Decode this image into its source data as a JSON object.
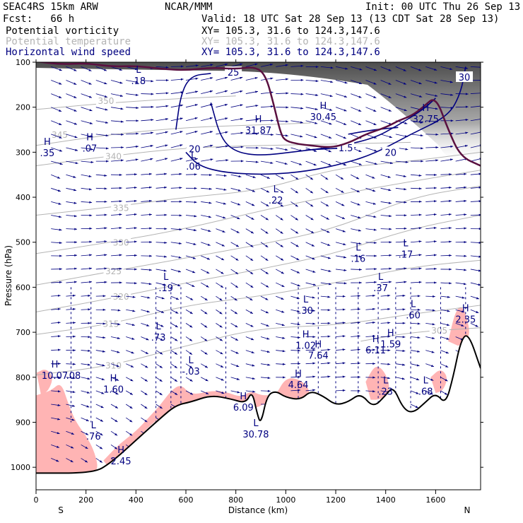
{
  "header": {
    "title_left": "SEAC4RS 15km ARW",
    "source": "NCAR/MMM",
    "init": "Init: 00 UTC Thu 26 Sep 13",
    "fcst": "Fcst:   66 h",
    "valid": "Valid: 18 UTC Sat 28 Sep 13 (13 CDT Sat 28 Sep 13)",
    "fields": [
      {
        "name": "Potential vorticity",
        "xy": "XY= 105.3, 31.6 to 124.3,147.6",
        "color": "#000000"
      },
      {
        "name": "Potential temperature",
        "xy": "XY= 105.3, 31.6 to 124.3,147.6",
        "color": "#b4b4b4"
      },
      {
        "name": "Horizontal wind speed",
        "xy": "XY= 105.3, 31.6 to 124.3,147.6",
        "color": "#000080"
      }
    ]
  },
  "chart_data": {
    "type": "cross-section",
    "xlabel": "Distance (km)",
    "ylabel": "Pressure (hPa)",
    "xlim": [
      0,
      1780
    ],
    "ylim": [
      1050,
      100
    ],
    "x_ticks": [
      "0",
      "200",
      "400",
      "600",
      "800",
      "1000",
      "1200",
      "1400",
      "1600"
    ],
    "y_ticks": [
      "100",
      "200",
      "300",
      "400",
      "500",
      "600",
      "700",
      "800",
      "900",
      "1000"
    ],
    "x_end_labels": {
      "left": "S",
      "right": "N"
    },
    "colors": {
      "theta": "#b4b4b4",
      "wind": "#000080",
      "pv": "#5a1040",
      "pv_shade": "#ffb4b4",
      "terrain": "#000000",
      "vectors": "#000080"
    },
    "terrain": [
      {
        "x": 0,
        "p": 1013
      },
      {
        "x": 230,
        "p": 1013
      },
      {
        "x": 300,
        "p": 990
      },
      {
        "x": 400,
        "p": 940
      },
      {
        "x": 500,
        "p": 890
      },
      {
        "x": 560,
        "p": 862
      },
      {
        "x": 620,
        "p": 855
      },
      {
        "x": 700,
        "p": 840
      },
      {
        "x": 780,
        "p": 848
      },
      {
        "x": 840,
        "p": 858
      },
      {
        "x": 865,
        "p": 830
      },
      {
        "x": 885,
        "p": 880
      },
      {
        "x": 900,
        "p": 905
      },
      {
        "x": 925,
        "p": 840
      },
      {
        "x": 960,
        "p": 830
      },
      {
        "x": 1000,
        "p": 845
      },
      {
        "x": 1060,
        "p": 850
      },
      {
        "x": 1100,
        "p": 830
      },
      {
        "x": 1150,
        "p": 842
      },
      {
        "x": 1200,
        "p": 862
      },
      {
        "x": 1250,
        "p": 855
      },
      {
        "x": 1300,
        "p": 835
      },
      {
        "x": 1350,
        "p": 868
      },
      {
        "x": 1400,
        "p": 840
      },
      {
        "x": 1430,
        "p": 820
      },
      {
        "x": 1470,
        "p": 870
      },
      {
        "x": 1510,
        "p": 880
      },
      {
        "x": 1560,
        "p": 855
      },
      {
        "x": 1600,
        "p": 835
      },
      {
        "x": 1640,
        "p": 860
      },
      {
        "x": 1670,
        "p": 800
      },
      {
        "x": 1700,
        "p": 720
      },
      {
        "x": 1730,
        "p": 700
      },
      {
        "x": 1780,
        "p": 780
      }
    ],
    "theta": [
      {
        "label": "345",
        "lx": 95,
        "lp": 260,
        "pts": [
          [
            0,
            285
          ],
          [
            300,
            260
          ],
          [
            600,
            245
          ],
          [
            850,
            240
          ],
          [
            1100,
            235
          ]
        ]
      },
      {
        "label": "340",
        "lx": 310,
        "lp": 308,
        "pts": [
          [
            0,
            330
          ],
          [
            300,
            308
          ],
          [
            600,
            290
          ],
          [
            900,
            285
          ],
          [
            1200,
            282
          ],
          [
            1500,
            278
          ]
        ]
      },
      {
        "label": "335",
        "lx": 340,
        "lp": 423,
        "pts": [
          [
            0,
            440
          ],
          [
            300,
            422
          ],
          [
            600,
            400
          ],
          [
            900,
            385
          ],
          [
            1200,
            335
          ],
          [
            1500,
            320
          ],
          [
            1780,
            300
          ]
        ]
      },
      {
        "label": "330",
        "lx": 340,
        "lp": 500,
        "pts": [
          [
            0,
            525
          ],
          [
            300,
            500
          ],
          [
            600,
            470
          ],
          [
            900,
            430
          ],
          [
            1200,
            395
          ],
          [
            1500,
            365
          ],
          [
            1780,
            340
          ]
        ]
      },
      {
        "label": "325",
        "lx": 310,
        "lp": 563,
        "pts": [
          [
            0,
            595
          ],
          [
            300,
            565
          ],
          [
            600,
            535
          ],
          [
            900,
            505
          ],
          [
            1200,
            470
          ],
          [
            1500,
            400
          ],
          [
            1780,
            375
          ]
        ]
      },
      {
        "label": "320",
        "lx": 340,
        "lp": 620,
        "pts": [
          [
            0,
            655
          ],
          [
            300,
            625
          ],
          [
            600,
            590
          ],
          [
            900,
            560
          ],
          [
            1200,
            525
          ],
          [
            1500,
            470
          ],
          [
            1780,
            440
          ]
        ]
      },
      {
        "label": "315",
        "lx": 300,
        "lp": 680,
        "pts": [
          [
            0,
            705
          ],
          [
            300,
            682
          ],
          [
            600,
            640
          ],
          [
            900,
            620
          ],
          [
            1200,
            590
          ],
          [
            1500,
            555
          ],
          [
            1780,
            540
          ]
        ]
      },
      {
        "label": "310",
        "lx": 310,
        "lp": 773,
        "pts": [
          [
            0,
            795
          ],
          [
            300,
            775
          ],
          [
            600,
            730
          ],
          [
            900,
            690
          ],
          [
            1200,
            685
          ],
          [
            1500,
            660
          ],
          [
            1780,
            640
          ]
        ]
      },
      {
        "label": "305",
        "lx": 1615,
        "lp": 695,
        "pts": [
          [
            1300,
            720
          ],
          [
            1500,
            700
          ],
          [
            1780,
            690
          ]
        ]
      },
      {
        "label": "350",
        "lx": 280,
        "lp": 185,
        "pts": [
          [
            0,
            205
          ],
          [
            300,
            190
          ],
          [
            600,
            180
          ],
          [
            800,
            175
          ]
        ]
      }
    ],
    "wind_contours": [
      {
        "label": "20",
        "lx": 635,
        "lp": 292,
        "pts": [
          [
            560,
            250
          ],
          [
            580,
            170
          ],
          [
            620,
            130
          ],
          [
            700,
            125
          ]
        ]
      },
      {
        "label": "25",
        "lx": 790,
        "lp": 122,
        "pts": [
          [
            600,
            300
          ],
          [
            650,
            330
          ],
          [
            750,
            345
          ],
          [
            900,
            350
          ],
          [
            1050,
            345
          ],
          [
            1200,
            330
          ],
          [
            1350,
            305
          ],
          [
            1500,
            260
          ],
          [
            1650,
            220
          ],
          [
            1700,
            170
          ],
          [
            1720,
            110
          ]
        ]
      },
      {
        "label": "30",
        "lx": 1715,
        "lp": 133,
        "pts": [
          [
            700,
            190
          ],
          [
            740,
            270
          ],
          [
            800,
            300
          ],
          [
            900,
            308
          ],
          [
            1050,
            298
          ],
          [
            1200,
            288
          ],
          [
            1350,
            270
          ],
          [
            1450,
            240
          ],
          [
            1550,
            205
          ],
          [
            1600,
            180
          ]
        ]
      },
      {
        "label": "1.5",
        "lx": 1240,
        "lp": 290,
        "pts": [
          [
            1080,
            295
          ],
          [
            1180,
            292
          ],
          [
            1280,
            290
          ]
        ]
      },
      {
        "label": "20",
        "lx": 1420,
        "lp": 300,
        "pts": [
          [
            1250,
            260
          ],
          [
            1350,
            250
          ],
          [
            1450,
            245
          ]
        ]
      }
    ],
    "pv_2pvu": [
      [
        0,
        98
      ],
      [
        100,
        105
      ],
      [
        200,
        102
      ],
      [
        300,
        110
      ],
      [
        400,
        108
      ],
      [
        500,
        115
      ],
      [
        600,
        118
      ],
      [
        700,
        112
      ],
      [
        800,
        115
      ],
      [
        880,
        110
      ],
      [
        920,
        130
      ],
      [
        950,
        190
      ],
      [
        980,
        260
      ],
      [
        1000,
        275
      ],
      [
        1050,
        282
      ],
      [
        1100,
        285
      ],
      [
        1180,
        290
      ],
      [
        1250,
        280
      ],
      [
        1320,
        260
      ],
      [
        1400,
        245
      ],
      [
        1450,
        230
      ],
      [
        1500,
        220
      ],
      [
        1550,
        200
      ],
      [
        1600,
        175
      ],
      [
        1650,
        250
      ],
      [
        1700,
        310
      ],
      [
        1780,
        330
      ]
    ],
    "labels": [
      {
        "t": "H",
        "s": ".35",
        "x": 45,
        "p": 290
      },
      {
        "t": "H",
        "s": ".07",
        "x": 215,
        "p": 280
      },
      {
        "t": "H",
        "s": "31.87",
        "x": 890,
        "p": 240
      },
      {
        "t": "H",
        "s": "30.45",
        "x": 1150,
        "p": 210
      },
      {
        "t": "H",
        "s": "32.75",
        "x": 1560,
        "p": 215
      },
      {
        "t": "L",
        "s": ".18",
        "x": 410,
        "p": 130
      },
      {
        "t": "L",
        "s": ".06",
        "x": 630,
        "p": 320
      },
      {
        "t": "L",
        "s": ".22",
        "x": 960,
        "p": 395
      },
      {
        "t": "L",
        "s": ".16",
        "x": 1290,
        "p": 525
      },
      {
        "t": "L",
        "s": ".17",
        "x": 1480,
        "p": 515
      },
      {
        "t": "L",
        "s": ".19",
        "x": 520,
        "p": 590
      },
      {
        "t": "L",
        "s": ".37",
        "x": 1380,
        "p": 590
      },
      {
        "t": "L",
        "s": ".30",
        "x": 1080,
        "p": 640
      },
      {
        "t": "L",
        "s": ".60",
        "x": 1510,
        "p": 650
      },
      {
        "t": "L",
        "s": ".73",
        "x": 490,
        "p": 700
      },
      {
        "t": "H",
        "s": "1.02",
        "x": 1080,
        "p": 718
      },
      {
        "t": "H",
        "s": "7.64",
        "x": 1130,
        "p": 740
      },
      {
        "t": "H",
        "s": "6.11",
        "x": 1360,
        "p": 728
      },
      {
        "t": "H",
        "s": "1.59",
        "x": 1420,
        "p": 715
      },
      {
        "t": "H",
        "s": "2.35",
        "x": 1720,
        "p": 660
      },
      {
        "t": "H",
        "s": "10.07",
        "x": 75,
        "p": 785
      },
      {
        "t": "",
        "s": ".08",
        "x": 150,
        "p": 785
      },
      {
        "t": "H",
        "s": "1.60",
        "x": 310,
        "p": 815
      },
      {
        "t": "L",
        "s": "-.03",
        "x": 620,
        "p": 775
      },
      {
        "t": "H",
        "s": "4.64",
        "x": 1050,
        "p": 805
      },
      {
        "t": "H",
        "s": "6.09",
        "x": 830,
        "p": 855
      },
      {
        "t": "L",
        "s": ".76",
        "x": 230,
        "p": 920
      },
      {
        "t": "H",
        "s": "2.45",
        "x": 340,
        "p": 975
      },
      {
        "t": "L",
        "s": "30.78",
        "x": 880,
        "p": 915
      },
      {
        "t": "L",
        "s": ".23",
        "x": 1400,
        "p": 820
      },
      {
        "t": "L",
        "s": ".68",
        "x": 1560,
        "p": 820
      }
    ]
  }
}
